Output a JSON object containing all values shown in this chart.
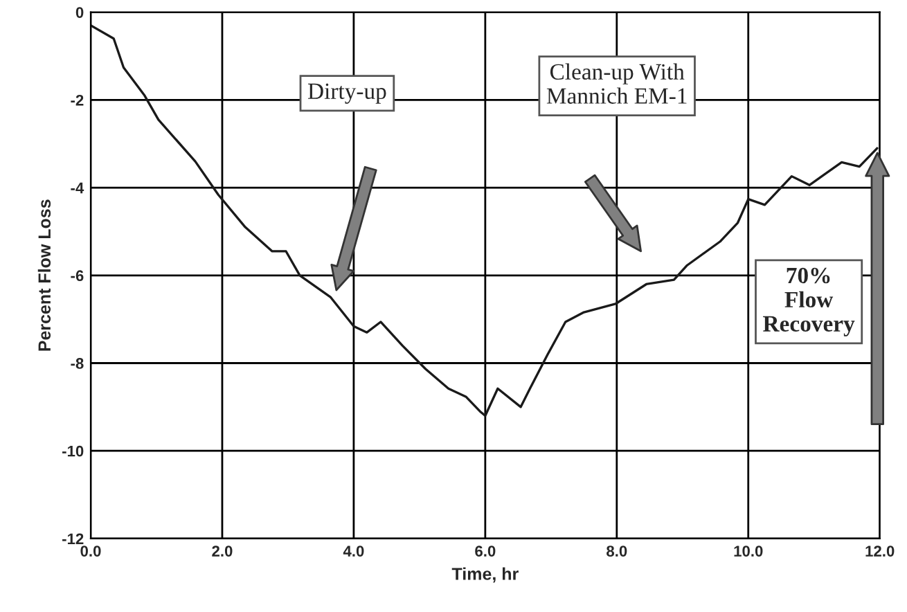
{
  "chart_data": {
    "type": "line",
    "xlabel": "Time, hr",
    "ylabel": "Percent Flow Loss",
    "x": [
      0,
      0.35,
      0.5,
      0.82,
      1.03,
      1.59,
      1.94,
      2.35,
      2.76,
      2.97,
      3.18,
      3.65,
      4.0,
      4.2,
      4.41,
      4.74,
      5.09,
      5.44,
      5.71,
      5.92,
      6.0,
      6.19,
      6.54,
      6.68,
      6.95,
      7.22,
      7.5,
      7.98,
      8.45,
      8.87,
      9.07,
      9.57,
      9.84,
      10.0,
      10.25,
      10.66,
      10.93,
      11.42,
      11.69,
      11.96
    ],
    "series": [
      {
        "color": "#1a1a1a",
        "values": [
          -0.3,
          -0.6,
          -1.26,
          -1.9,
          -2.45,
          -3.4,
          -4.16,
          -4.9,
          -5.45,
          -5.45,
          -6.0,
          -6.5,
          -7.16,
          -7.3,
          -7.06,
          -7.6,
          -8.13,
          -8.58,
          -8.77,
          -9.1,
          -9.2,
          -8.58,
          -9.0,
          -8.58,
          -7.8,
          -7.06,
          -6.84,
          -6.65,
          -6.2,
          -6.1,
          -5.77,
          -5.23,
          -4.8,
          -4.26,
          -4.39,
          -3.74,
          -3.94,
          -3.42,
          -3.52,
          -3.1
        ]
      }
    ],
    "xlim": [
      0,
      12
    ],
    "ylim": [
      -12,
      0
    ],
    "xticks": [
      {
        "value": 0,
        "label": "0.0"
      },
      {
        "value": 2,
        "label": "2.0"
      },
      {
        "value": 4,
        "label": "4.0"
      },
      {
        "value": 6,
        "label": "6.0"
      },
      {
        "value": 8,
        "label": "8.0"
      },
      {
        "value": 10,
        "label": "10.0"
      },
      {
        "value": 12,
        "label": "12.0"
      }
    ],
    "yticks": [
      -12,
      -10,
      -8,
      -6,
      -4,
      -2,
      0
    ],
    "grid": true,
    "marker": "none",
    "line_style": "solid",
    "annotations": [
      "Dirty-up",
      "Clean-up With\nMannich EM-1",
      "70%\nFlow\nRecovery"
    ]
  }
}
